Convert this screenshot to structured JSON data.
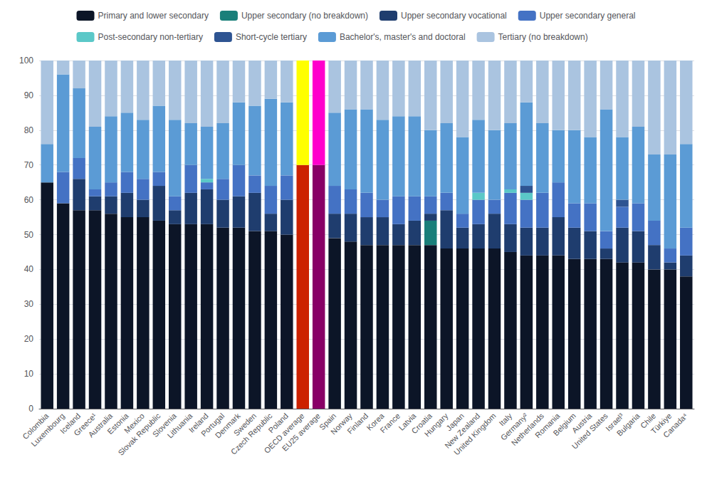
{
  "chart_data": {
    "type": "bar",
    "stacked": true,
    "grid": true,
    "legend": "top",
    "categories": [
      "Colombia",
      "Luxembourg",
      "Iceland",
      "Greece¹",
      "Australia",
      "Estonia",
      "Mexico",
      "Slovak Republic",
      "Slovenia",
      "Lithuania",
      "Ireland",
      "Portugal",
      "Denmark",
      "Sweden",
      "Czech Republic",
      "Poland",
      "OECD average",
      "EU25 average",
      "Spain",
      "Norway",
      "Finland",
      "Korea",
      "France",
      "Latvia",
      "Croatia",
      "Hungary",
      "Japan",
      "New Zealand",
      "United Kingdom",
      "Italy",
      "Germany²",
      "Netherlands",
      "Romania",
      "Belgium",
      "Austria",
      "United States",
      "Israel³",
      "Bulgaria",
      "Chile",
      "Türkiye",
      "Canada⁴"
    ],
    "ylim": [
      0,
      100
    ],
    "yticks": [
      0,
      10,
      20,
      30,
      40,
      50,
      60,
      70,
      80,
      90,
      100
    ],
    "series": [
      {
        "name": "Primary and lower secondary",
        "color": "#0c1527",
        "values": [
          65,
          59,
          57,
          57,
          56,
          55,
          55,
          54,
          53,
          53,
          53,
          52,
          52,
          51,
          51,
          50,
          70,
          70,
          49,
          48,
          47,
          47,
          47,
          47,
          47,
          46,
          46,
          46,
          46,
          45,
          44,
          44,
          44,
          43,
          43,
          43,
          42,
          42,
          40,
          40,
          38
        ],
        "colors": [
          "#0c1527",
          "#0c1527",
          "#0c1527",
          "#0c1527",
          "#0c1527",
          "#0c1527",
          "#0c1527",
          "#0c1527",
          "#0c1527",
          "#0c1527",
          "#0c1527",
          "#0c1527",
          "#0c1527",
          "#0c1527",
          "#0c1527",
          "#0c1527",
          "#cc2200",
          "#880066",
          "#0c1527",
          "#0c1527",
          "#0c1527",
          "#0c1527",
          "#0c1527",
          "#0c1527",
          "#0c1527",
          "#0c1527",
          "#0c1527",
          "#0c1527",
          "#0c1527",
          "#0c1527",
          "#0c1527",
          "#0c1527",
          "#0c1527",
          "#0c1527",
          "#0c1527",
          "#0c1527",
          "#0c1527",
          "#0c1527",
          "#0c1527",
          "#0c1527",
          "#0c1527"
        ]
      },
      {
        "name": "Upper secondary (no breakdown)",
        "color": "#1a7f7a",
        "values": [
          0,
          0,
          0,
          0,
          0,
          0,
          0,
          0,
          0,
          0,
          0,
          0,
          0,
          0,
          0,
          0,
          0,
          0,
          0,
          0,
          0,
          0,
          0,
          0,
          7,
          0,
          0,
          0,
          0,
          0,
          0,
          0,
          0,
          0,
          0,
          0,
          0,
          0,
          0,
          0,
          0
        ]
      },
      {
        "name": "Upper secondary vocational",
        "color": "#1f3d6e",
        "values": [
          0,
          0,
          9,
          4,
          5,
          7,
          5,
          10,
          4,
          9,
          10,
          8,
          9,
          11,
          5,
          10,
          0,
          0,
          7,
          8,
          8,
          8,
          6,
          7,
          2,
          11,
          6,
          7,
          10,
          8,
          8,
          8,
          11,
          9,
          8,
          3,
          10,
          9,
          7,
          2,
          6
        ]
      },
      {
        "name": "Upper secondary general",
        "color": "#4472c4",
        "values": [
          0,
          9,
          6,
          2,
          4,
          6,
          6,
          4,
          4,
          8,
          2,
          6,
          9,
          5,
          8,
          7,
          0,
          0,
          8,
          7,
          7,
          5,
          8,
          7,
          5,
          5,
          4,
          7,
          4,
          9,
          8,
          10,
          10,
          7,
          8,
          5,
          6,
          8,
          7,
          4,
          8
        ]
      },
      {
        "name": "Post-secondary non-tertiary",
        "color": "#5bc8c8",
        "values": [
          0,
          0,
          0,
          0,
          0,
          0,
          0,
          0,
          0,
          0,
          1,
          0,
          0,
          0,
          0,
          0,
          0,
          0,
          0,
          0,
          0,
          0,
          0,
          0,
          0,
          0,
          0,
          2,
          0,
          1,
          2,
          0,
          0,
          0,
          0,
          0,
          0,
          0,
          0,
          0,
          0
        ]
      },
      {
        "name": "Short-cycle tertiary",
        "color": "#2e5492",
        "values": [
          0,
          0,
          0,
          0,
          0,
          0,
          0,
          0,
          0,
          0,
          0,
          0,
          0,
          0,
          0,
          0,
          0,
          0,
          0,
          0,
          0,
          0,
          0,
          0,
          0,
          0,
          0,
          0,
          0,
          0,
          2,
          0,
          0,
          0,
          0,
          0,
          2,
          0,
          0,
          0,
          0
        ]
      },
      {
        "name": "Bachelor's, master's and doctoral",
        "color": "#5b9bd5",
        "values": [
          11,
          28,
          20,
          18,
          19,
          17,
          17,
          19,
          22,
          12,
          15,
          16,
          18,
          20,
          25,
          21,
          0,
          0,
          21,
          23,
          24,
          23,
          23,
          23,
          19,
          20,
          22,
          21,
          20,
          19,
          24,
          20,
          15,
          21,
          19,
          35,
          18,
          22,
          19,
          27,
          24
        ]
      },
      {
        "name": "Tertiary (no breakdown)",
        "color": "#aac4e0",
        "values": [
          24,
          4,
          8,
          19,
          16,
          15,
          17,
          13,
          17,
          18,
          19,
          18,
          12,
          13,
          11,
          12,
          0,
          0,
          15,
          14,
          14,
          17,
          16,
          16,
          20,
          18,
          22,
          17,
          20,
          18,
          12,
          18,
          20,
          20,
          22,
          14,
          22,
          19,
          27,
          27,
          24
        ]
      },
      {
        "color": "#ffff00",
        "values": [
          null,
          null,
          null,
          null,
          null,
          null,
          null,
          null,
          null,
          null,
          null,
          null,
          null,
          null,
          null,
          null,
          30,
          null,
          null,
          null,
          null,
          null,
          null,
          null,
          null,
          null,
          null,
          null,
          null,
          null,
          null,
          null,
          null,
          null,
          null,
          null,
          null,
          null,
          null,
          null,
          null
        ]
      },
      {
        "color": "#ff00cc",
        "values": [
          null,
          null,
          null,
          null,
          null,
          null,
          null,
          null,
          null,
          null,
          null,
          null,
          null,
          null,
          null,
          null,
          null,
          30,
          null,
          null,
          null,
          null,
          null,
          null,
          null,
          null,
          null,
          null,
          null,
          null,
          null,
          null,
          null,
          null,
          null,
          null,
          null,
          null,
          null,
          null,
          null
        ]
      }
    ]
  }
}
